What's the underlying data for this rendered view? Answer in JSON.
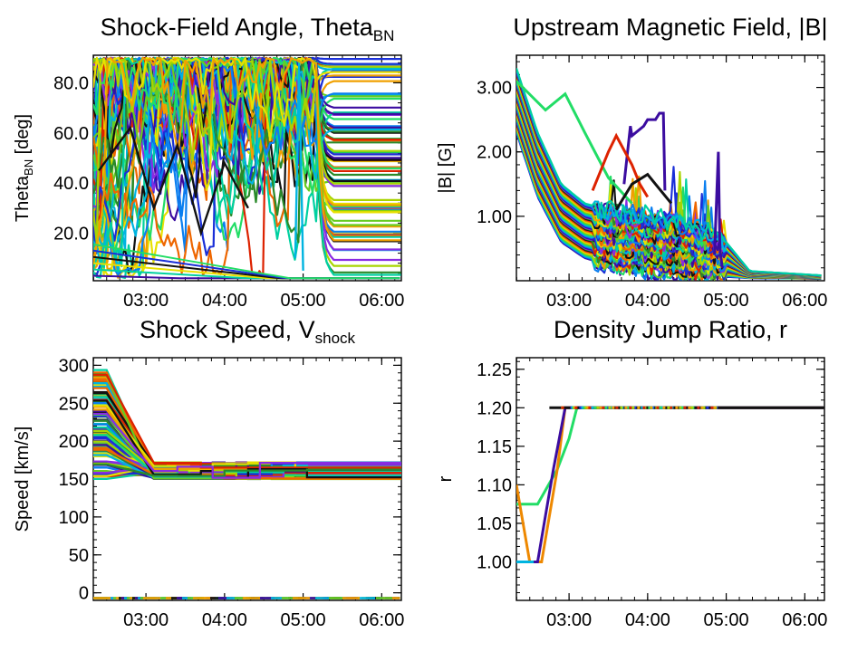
{
  "chart_data": [
    {
      "id": "theta",
      "type": "line",
      "title": "Shock-Field Angle, Theta",
      "title_sub": "BN",
      "xlabel": "",
      "ylabel": "Theta",
      "ylabel_sub": "BN",
      "ylabel_suffix": " [deg]",
      "x_tick_labels": [
        "03:00",
        "04:00",
        "05:00",
        "06:00"
      ],
      "x_ticks_hours": [
        3,
        4,
        5,
        6
      ],
      "xlim_hours": [
        2.33,
        6.25
      ],
      "y_tick_labels": [
        "20.0",
        "40.0",
        "60.0",
        "80.0"
      ],
      "y_ticks": [
        20,
        40,
        60,
        80
      ],
      "ylim": [
        1,
        91
      ],
      "series_count": "many",
      "bundle_description": "highly variable 0-90 deg before ~05:15, then flat horizontal lines spanning 0-90 deg",
      "highlight_series": [
        {
          "color": "#111111",
          "x": [
            2.4,
            2.8,
            3.1,
            3.4,
            3.7,
            4.0,
            4.3
          ],
          "y": [
            45,
            62,
            30,
            55,
            20,
            48,
            30
          ]
        },
        {
          "color": "#00b4e0",
          "x": [
            4.9,
            4.95,
            5.0
          ],
          "y": [
            10,
            88,
            5
          ]
        }
      ]
    },
    {
      "id": "bfield",
      "type": "line",
      "title": "Upstream Magnetic Field, |B|",
      "xlabel": "",
      "ylabel": "|B| [G]",
      "x_tick_labels": [
        "03:00",
        "04:00",
        "05:00",
        "06:00"
      ],
      "x_ticks_hours": [
        3,
        4,
        5,
        6
      ],
      "xlim_hours": [
        2.33,
        6.25
      ],
      "y_tick_labels": [
        "1.00",
        "2.00",
        "3.00"
      ],
      "y_ticks": [
        1,
        2,
        3
      ],
      "ylim": [
        0,
        3.5
      ],
      "series_count": "many",
      "envelope_x": [
        2.33,
        2.6,
        2.9,
        3.2,
        3.5,
        4.0,
        4.5,
        5.0,
        5.3,
        6.25
      ],
      "envelope_upper": [
        3.3,
        2.3,
        1.5,
        1.2,
        1.1,
        1.0,
        0.9,
        0.6,
        0.15,
        0.08
      ],
      "envelope_lower": [
        2.3,
        1.3,
        0.6,
        0.35,
        0.25,
        0.15,
        0.1,
        0.06,
        0.04,
        0.03
      ],
      "highlight_series": [
        {
          "color": "#22dd66",
          "x": [
            2.33,
            2.7,
            2.95,
            3.2,
            3.5,
            3.8
          ],
          "y": [
            3.1,
            2.65,
            2.9,
            2.3,
            1.6,
            1.2
          ]
        },
        {
          "color": "#3b0ca0",
          "x": [
            3.7,
            3.78,
            3.8,
            3.95,
            4.0,
            4.1,
            4.15,
            4.2,
            4.22
          ],
          "y": [
            1.5,
            2.4,
            2.25,
            2.4,
            2.5,
            2.5,
            2.6,
            2.6,
            1.4
          ]
        },
        {
          "color": "#dd2200",
          "x": [
            3.3,
            3.5,
            3.6,
            3.8,
            3.9,
            4.0
          ],
          "y": [
            1.4,
            2.0,
            2.25,
            1.8,
            1.5,
            1.3
          ]
        },
        {
          "color": "#3b0ca0",
          "x": [
            4.85,
            4.9,
            4.92,
            4.95
          ],
          "y": [
            0.4,
            2.0,
            0.5,
            0.2
          ]
        },
        {
          "color": "#111111",
          "x": [
            3.6,
            3.8,
            4.0,
            4.1,
            4.3
          ],
          "y": [
            1.1,
            1.5,
            1.65,
            1.5,
            1.2
          ]
        }
      ]
    },
    {
      "id": "vshock",
      "type": "line",
      "title": "Shock Speed, V",
      "title_sub": "shock",
      "xlabel": "",
      "ylabel": "Speed [km/s]",
      "x_tick_labels": [
        "03:00",
        "04:00",
        "05:00",
        "06:00"
      ],
      "x_ticks_hours": [
        3,
        4,
        5,
        6
      ],
      "xlim_hours": [
        2.33,
        6.25
      ],
      "y_tick_labels": [
        "0",
        "50",
        "100",
        "150",
        "200",
        "250",
        "300"
      ],
      "y_ticks": [
        0,
        50,
        100,
        150,
        200,
        250,
        300
      ],
      "ylim": [
        -10,
        310
      ],
      "series_count": "many",
      "bundle_description": "starting values 150-295 km/s decreasing to a flat band 150-172 km/s by ~03:10; a second band near -7 km/s",
      "start_values_range": [
        150,
        295
      ],
      "settle_band": [
        150,
        172
      ],
      "settle_hour": 3.1,
      "low_band_value": -7
    },
    {
      "id": "density",
      "type": "line",
      "title": "Density Jump Ratio, r",
      "xlabel": "",
      "ylabel": "r",
      "x_tick_labels": [
        "03:00",
        "04:00",
        "05:00",
        "06:00"
      ],
      "x_ticks_hours": [
        3,
        4,
        5,
        6
      ],
      "xlim_hours": [
        2.33,
        6.25
      ],
      "y_tick_labels": [
        "1.00",
        "1.05",
        "1.10",
        "1.15",
        "1.20",
        "1.25"
      ],
      "y_ticks": [
        1.0,
        1.05,
        1.1,
        1.15,
        1.2,
        1.25
      ],
      "ylim": [
        0.95,
        1.265
      ],
      "series": [
        {
          "color": "#22dd66",
          "x": [
            2.33,
            2.5,
            2.6,
            2.85,
            3.0,
            3.1,
            6.25
          ],
          "y": [
            1.075,
            1.075,
            1.075,
            1.12,
            1.16,
            1.2,
            1.2
          ]
        },
        {
          "color": "#ee8800",
          "x": [
            2.33,
            2.5,
            2.65,
            2.85,
            2.95,
            3.0,
            6.25
          ],
          "y": [
            1.1,
            1.0,
            1.0,
            1.12,
            1.2,
            1.2,
            1.2
          ]
        },
        {
          "color": "#3b0ca0",
          "x": [
            2.33,
            2.6,
            2.7,
            2.8,
            2.95,
            3.0,
            6.25
          ],
          "y": [
            1.0,
            1.0,
            1.06,
            1.12,
            1.2,
            1.2,
            1.2
          ]
        },
        {
          "color": "#111111",
          "x": [
            2.75,
            2.95,
            6.25
          ],
          "y": [
            1.2,
            1.2,
            1.2
          ]
        },
        {
          "color": "#00b4e0",
          "x": [
            2.33,
            2.55
          ],
          "y": [
            1.0,
            1.0
          ]
        }
      ]
    }
  ]
}
